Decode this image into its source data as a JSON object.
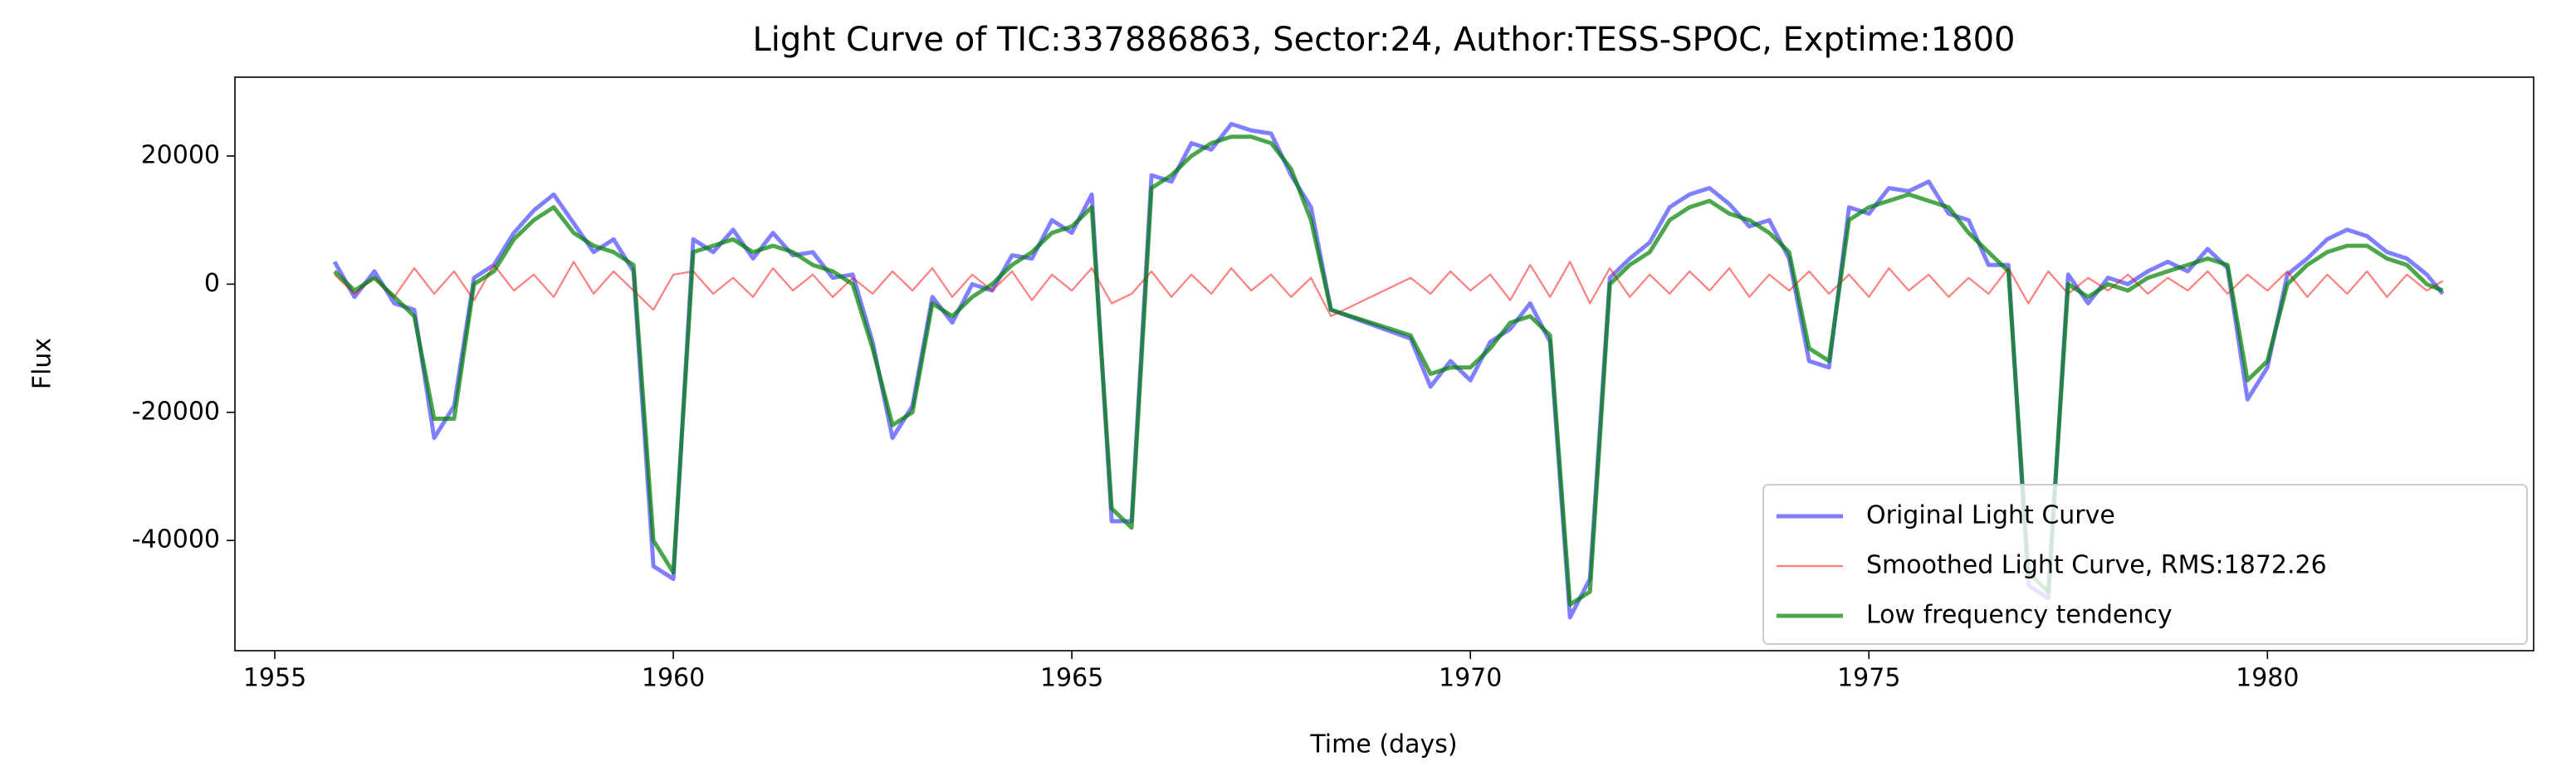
{
  "chart_data": {
    "type": "line",
    "title": "Light Curve of TIC:337886863, Sector:24, Author:TESS-SPOC, Exptime:1800",
    "x_label": "Time (days)",
    "y_label": "Flux",
    "xlim": [
      1954.5,
      1983.34
    ],
    "ylim": [
      -57200,
      32300
    ],
    "xticks": [
      1955,
      1960,
      1965,
      1970,
      1975,
      1980
    ],
    "yticks": [
      -40000,
      -20000,
      0,
      20000
    ],
    "legend": "lower right",
    "x": [
      1955.75,
      1956.0,
      1956.25,
      1956.5,
      1956.75,
      1957.0,
      1957.25,
      1957.5,
      1957.75,
      1958.0,
      1958.25,
      1958.5,
      1958.75,
      1959.0,
      1959.25,
      1959.5,
      1959.75,
      1960.0,
      1960.25,
      1960.5,
      1960.75,
      1961.0,
      1961.25,
      1961.5,
      1961.75,
      1962.0,
      1962.25,
      1962.5,
      1962.75,
      1963.0,
      1963.25,
      1963.5,
      1963.75,
      1964.0,
      1964.25,
      1964.5,
      1964.75,
      1965.0,
      1965.25,
      1965.5,
      1965.75,
      1966.0,
      1966.25,
      1966.5,
      1966.75,
      1967.0,
      1967.25,
      1967.5,
      1967.75,
      1968.0,
      1968.25,
      1969.25,
      1969.5,
      1969.75,
      1970.0,
      1970.25,
      1970.5,
      1970.75,
      1971.0,
      1971.25,
      1971.5,
      1971.75,
      1972.0,
      1972.25,
      1972.5,
      1972.75,
      1973.0,
      1973.25,
      1973.5,
      1973.75,
      1974.0,
      1974.25,
      1974.5,
      1974.75,
      1975.0,
      1975.25,
      1975.5,
      1975.75,
      1976.0,
      1976.25,
      1976.5,
      1976.75,
      1977.0,
      1977.25,
      1977.5,
      1977.75,
      1978.0,
      1978.25,
      1978.5,
      1978.75,
      1979.0,
      1979.25,
      1979.5,
      1979.75,
      1980.0,
      1980.25,
      1980.5,
      1980.75,
      1981.0,
      1981.25,
      1981.5,
      1981.75,
      1982.0,
      1982.2
    ],
    "series": [
      {
        "name": "Original Light Curve",
        "color": "#0000ff",
        "alpha": 0.5,
        "linewidth": 5,
        "values": [
          3500,
          -2000,
          2000,
          -3000,
          -4000,
          -24000,
          -19000,
          1000,
          3000,
          8000,
          11500,
          14000,
          9500,
          5000,
          7000,
          2000,
          -44000,
          -46000,
          7000,
          5000,
          8500,
          4000,
          8000,
          4500,
          5000,
          1000,
          1500,
          -9000,
          -24000,
          -19000,
          -2000,
          -6000,
          0,
          -1000,
          4500,
          4000,
          10000,
          8000,
          14000,
          -37000,
          -37000,
          17000,
          16000,
          22000,
          21000,
          25000,
          24000,
          23500,
          17000,
          12000,
          -4000,
          -8500,
          -16000,
          -12000,
          -15000,
          -9000,
          -7000,
          -3000,
          -9000,
          -52000,
          -46000,
          1000,
          4000,
          6500,
          12000,
          14000,
          15000,
          12500,
          9000,
          10000,
          4000,
          -12000,
          -13000,
          12000,
          11000,
          15000,
          14500,
          16000,
          11000,
          10000,
          3000,
          3000,
          -47000,
          -49000,
          1500,
          -3000,
          1000,
          0,
          2000,
          3500,
          2000,
          5500,
          2500,
          -18000,
          -13000,
          1500,
          4000,
          7000,
          8500,
          7500,
          5000,
          4000,
          1500,
          -1500
        ]
      },
      {
        "name": "Smoothed Light Curve, RMS:1872.26",
        "color": "#ff0000",
        "alpha": 0.5,
        "linewidth": 2.2,
        "values": [
          1500,
          -1500,
          1000,
          -2000,
          2500,
          -1500,
          2000,
          -2500,
          3000,
          -1000,
          1500,
          -2000,
          3500,
          -1500,
          2000,
          -1000,
          -4000,
          1500,
          2000,
          -1500,
          1000,
          -2000,
          2500,
          -1000,
          1500,
          -2000,
          1000,
          -1500,
          2000,
          -1000,
          2500,
          -2000,
          1500,
          -1000,
          2000,
          -2500,
          1500,
          -1000,
          2500,
          -3000,
          -1500,
          2000,
          -2000,
          1500,
          -1500,
          2500,
          -1000,
          1500,
          -2000,
          1000,
          -5000,
          1000,
          -1500,
          2000,
          -1000,
          1500,
          -2500,
          3000,
          -2000,
          3500,
          -3000,
          2500,
          -2000,
          1500,
          -1500,
          2000,
          -1000,
          2500,
          -2000,
          1500,
          -1000,
          2000,
          -1500,
          1500,
          -2000,
          2500,
          -1000,
          1500,
          -2000,
          1000,
          -1500,
          2500,
          -3000,
          2000,
          -1500,
          1000,
          -1000,
          1500,
          -1500,
          1000,
          -1000,
          2000,
          -1500,
          1500,
          -1000,
          2000,
          -2000,
          1500,
          -1500,
          2000,
          -2000,
          1500,
          -1000,
          500
        ]
      },
      {
        "name": "Low frequency tendency",
        "color": "#008000",
        "alpha": 0.7,
        "linewidth": 5,
        "values": [
          2000,
          -1000,
          1000,
          -2000,
          -5000,
          -21000,
          -21000,
          0,
          2000,
          7000,
          10000,
          12000,
          8000,
          6000,
          5000,
          3000,
          -40000,
          -45000,
          5000,
          6000,
          7000,
          5000,
          6000,
          5000,
          3000,
          2000,
          0,
          -10000,
          -22000,
          -20000,
          -3000,
          -5000,
          -2000,
          0,
          3000,
          5000,
          8000,
          9000,
          12000,
          -35000,
          -38000,
          15000,
          17000,
          20000,
          22000,
          23000,
          23000,
          22000,
          18000,
          10000,
          -4000,
          -8000,
          -14000,
          -13000,
          -13000,
          -10000,
          -6000,
          -5000,
          -8000,
          -50000,
          -48000,
          0,
          3000,
          5000,
          10000,
          12000,
          13000,
          11000,
          10000,
          8000,
          5000,
          -10000,
          -12000,
          10000,
          12000,
          13000,
          14000,
          13000,
          12000,
          8000,
          5000,
          2000,
          -45000,
          -48000,
          0,
          -2000,
          0,
          -1000,
          1000,
          2000,
          3000,
          4000,
          3000,
          -15000,
          -12000,
          0,
          3000,
          5000,
          6000,
          6000,
          4000,
          3000,
          0,
          -1000
        ]
      }
    ]
  }
}
